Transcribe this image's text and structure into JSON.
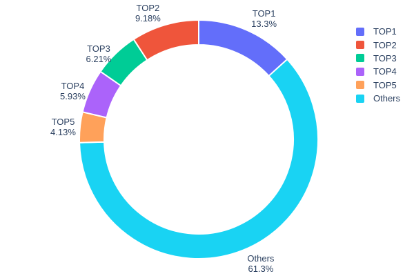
{
  "figure": {
    "background": "#ffffff"
  },
  "chart_data": {
    "type": "pie",
    "subtype": "donut",
    "hole": 0.79,
    "title": "",
    "labels": [
      "TOP1",
      "TOP2",
      "TOP3",
      "TOP4",
      "TOP5",
      "Others"
    ],
    "values": [
      13.3,
      9.18,
      6.21,
      5.93,
      4.13,
      61.3
    ],
    "display_percents": [
      "13.3%",
      "9.18%",
      "6.21%",
      "5.93%",
      "4.13%",
      "61.3%"
    ],
    "colors": [
      "#636efa",
      "#ef553b",
      "#00cc96",
      "#ab63fa",
      "#ffa15a",
      "#19d3f3"
    ],
    "slice_border_color": "#ffffff",
    "text_color": "#2a3f5f",
    "start_angle_deg": 0,
    "direction": "clockwise",
    "clockwise_order": [
      "TOP1",
      "Others",
      "TOP5",
      "TOP4",
      "TOP3",
      "TOP2"
    ],
    "legend": {
      "position": "right",
      "items": [
        "TOP1",
        "TOP2",
        "TOP3",
        "TOP4",
        "TOP5",
        "Others"
      ]
    }
  }
}
